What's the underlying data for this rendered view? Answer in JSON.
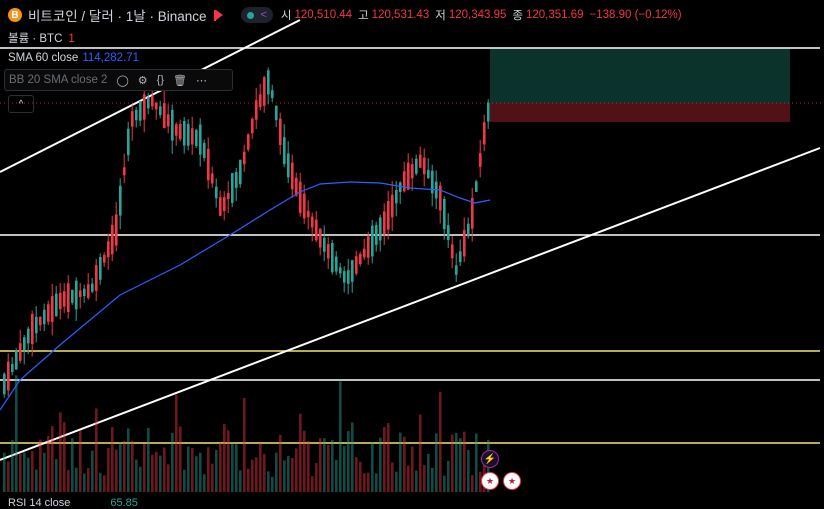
{
  "header": {
    "coin_icon": "bitcoin-icon",
    "coin_glyph": "B",
    "title": "비트코인 / 달러 · 1날 · Binance",
    "ohlc": [
      {
        "k": "시",
        "v": "120,510.44"
      },
      {
        "k": "고",
        "v": "120,531.43"
      },
      {
        "k": "저",
        "v": "120,343.95"
      },
      {
        "k": "종",
        "v": "120,351.69"
      }
    ],
    "change": "−138.90 (−0.12%)"
  },
  "volume_row": {
    "label": "볼륨 · BTC",
    "count": "1"
  },
  "sma": {
    "label": "SMA 60 close",
    "value": "114,282.71"
  },
  "bb": {
    "label": "BB 20 SMA close 2"
  },
  "collapse_glyph": "^",
  "rsi": {
    "label": "RSI 14 close",
    "value": "65.85"
  },
  "colors": {
    "up": "#26a69a",
    "down": "#f23645",
    "sma": "#2962ff",
    "line": "#ffffff",
    "level": "#f5e66b"
  }
}
